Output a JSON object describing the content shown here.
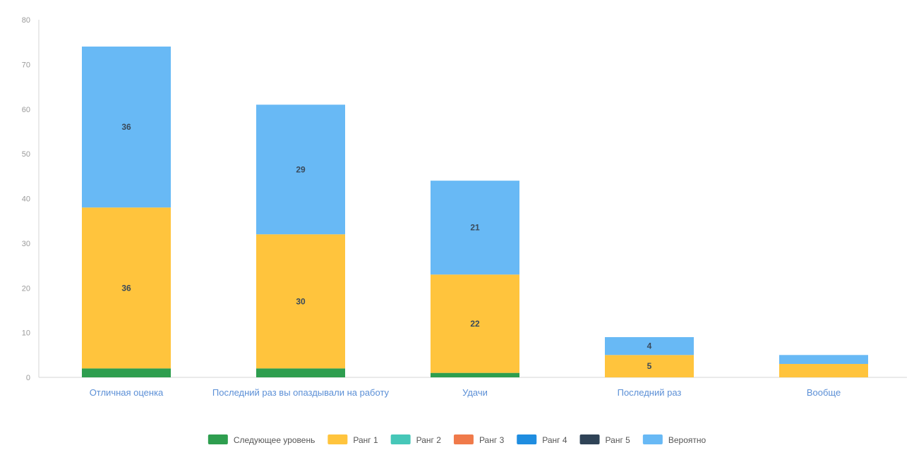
{
  "chart_data": {
    "type": "bar",
    "stacked": true,
    "categories": [
      "Отличная оценка",
      "Последний раз вы опаздывали на работу",
      "Удачи",
      "Последний раз",
      "Вообще"
    ],
    "ylim": [
      0,
      80
    ],
    "yticks": [
      0,
      10,
      20,
      30,
      40,
      50,
      60,
      70,
      80
    ],
    "grid": false,
    "legend_position": "bottom",
    "series": [
      {
        "name": "Следующее уровень",
        "color": "#2e9e4f",
        "values": [
          2,
          2,
          1,
          0,
          0
        ],
        "labels": [
          "",
          "",
          "",
          "",
          ""
        ]
      },
      {
        "name": "Ранг 1",
        "color": "#ffc43d",
        "values": [
          36,
          30,
          22,
          5,
          3
        ],
        "labels": [
          "36",
          "30",
          "22",
          "5",
          ""
        ]
      },
      {
        "name": "Ранг 2",
        "color": "#46c7b8",
        "values": [
          0,
          0,
          0,
          0,
          0
        ],
        "labels": [
          "",
          "",
          "",
          "",
          ""
        ]
      },
      {
        "name": "Ранг 3",
        "color": "#f07a4a",
        "values": [
          0,
          0,
          0,
          0,
          0
        ],
        "labels": [
          "",
          "",
          "",
          "",
          ""
        ]
      },
      {
        "name": "Ранг 4",
        "color": "#1f8de0",
        "values": [
          0,
          0,
          0,
          0,
          0
        ],
        "labels": [
          "",
          "",
          "",
          "",
          ""
        ]
      },
      {
        "name": "Ранг 5",
        "color": "#2f4357",
        "values": [
          0,
          0,
          0,
          0,
          0
        ],
        "labels": [
          "",
          "",
          "",
          "",
          ""
        ]
      },
      {
        "name": "Вероятно",
        "color": "#68b9f5",
        "values": [
          36,
          29,
          21,
          4,
          2
        ],
        "labels": [
          "36",
          "29",
          "21",
          "4",
          ""
        ]
      }
    ]
  }
}
